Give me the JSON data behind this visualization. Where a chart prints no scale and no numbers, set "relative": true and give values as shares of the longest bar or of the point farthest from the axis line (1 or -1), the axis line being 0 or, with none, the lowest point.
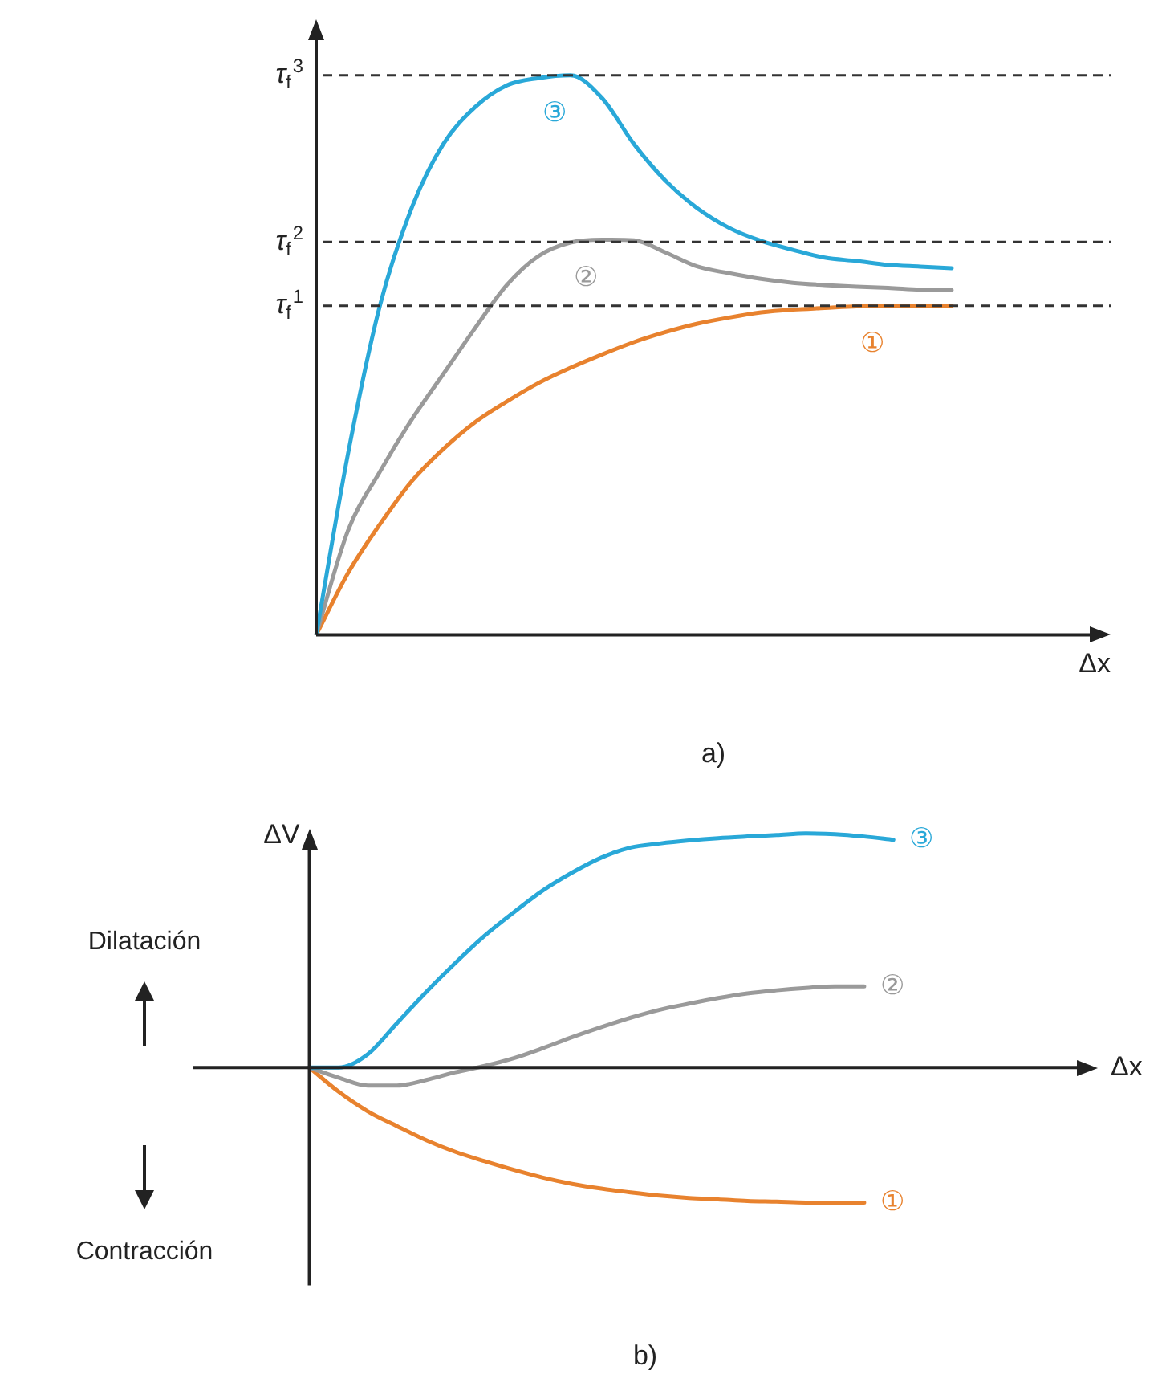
{
  "chart_data": [
    {
      "type": "line",
      "title": "a)",
      "xlabel": "Δx",
      "relative": true,
      "legend": false,
      "grid": false,
      "marker": "none",
      "line_style": "solid",
      "categories": [
        null,
        null,
        null,
        null,
        null,
        null,
        null,
        null,
        null,
        null,
        null,
        null,
        null,
        null,
        null,
        null,
        null,
        null,
        null,
        null,
        null,
        null,
        null,
        null,
        null,
        null
      ],
      "ref_lines": [
        {
          "axis": "y",
          "value": 1,
          "label": "τ$_{f}$$^{3}$",
          "line_style": "dashed",
          "color": "#333333"
        },
        {
          "axis": "y",
          "value": 0.702,
          "label": "τ$_{f}$$^{2}$",
          "line_style": "dashed",
          "color": "#333333"
        },
        {
          "axis": "y",
          "value": 0.588,
          "label": "τ$_{f}$$^{1}$",
          "line_style": "dashed",
          "color": "#333333"
        }
      ],
      "series": [
        {
          "name": "③",
          "color": "#29a8d8",
          "values": [
            0,
            0.323,
            0.587,
            0.762,
            0.877,
            0.943,
            0.982,
            0.995,
            1,
            0.959,
            0.877,
            0.811,
            0.762,
            0.727,
            0.704,
            0.688,
            0.674,
            0.668,
            0.661,
            0.658,
            0.655,
            null,
            null,
            null,
            null,
            null
          ]
        },
        {
          "name": "②",
          "color": "#9a9a9a",
          "values": [
            0,
            0.186,
            0.291,
            0.384,
            0.466,
            0.548,
            0.625,
            0.677,
            0.701,
            0.706,
            0.705,
            0.683,
            0.658,
            0.646,
            0.636,
            0.629,
            0.625,
            0.622,
            0.62,
            0.617,
            0.616,
            null,
            null,
            null,
            null,
            null
          ]
        },
        {
          "name": "①",
          "color": "#e8822e",
          "values": [
            0,
            0.11,
            0.197,
            0.274,
            0.332,
            0.38,
            0.417,
            0.45,
            0.477,
            0.501,
            0.523,
            0.541,
            0.556,
            0.567,
            0.576,
            0.581,
            0.584,
            0.587,
            0.588,
            0.588,
            0.588,
            null,
            null,
            null,
            null,
            null
          ]
        }
      ]
    },
    {
      "type": "line",
      "title": "b)",
      "xlabel": "Δx",
      "ylabel": "ΔV",
      "relative": true,
      "legend": false,
      "grid": false,
      "marker": "none",
      "line_style": "solid",
      "annotations": [
        "Dilatación",
        "Contracción"
      ],
      "categories": [
        null,
        null,
        null,
        null,
        null,
        null,
        null,
        null,
        null,
        null,
        null,
        null,
        null,
        null,
        null,
        null,
        null,
        null,
        null,
        null,
        null,
        null,
        null,
        null,
        null,
        null,
        null,
        null,
        null,
        null,
        null,
        null
      ],
      "series": [
        {
          "name": "③",
          "color": "#29a8d8",
          "values": [
            null,
            null,
            null,
            null,
            0,
            0,
            0.057,
            0.19,
            0.323,
            0.447,
            0.563,
            0.663,
            0.757,
            0.833,
            0.897,
            0.94,
            0.957,
            0.97,
            0.98,
            0.987,
            0.993,
            1,
            0.997,
            0.987,
            0.973,
            null,
            null,
            null,
            null,
            null,
            null,
            null
          ]
        },
        {
          "name": "②",
          "color": "#9a9a9a",
          "values": [
            null,
            null,
            null,
            null,
            0,
            -0.043,
            -0.077,
            -0.077,
            -0.053,
            -0.02,
            0.007,
            0.04,
            0.083,
            0.13,
            0.173,
            0.213,
            0.247,
            0.273,
            0.297,
            0.317,
            0.33,
            0.34,
            0.347,
            0.347,
            null,
            null,
            null,
            null,
            null,
            null,
            null,
            null
          ]
        },
        {
          "name": "①",
          "color": "#e8822e",
          "values": [
            null,
            null,
            null,
            null,
            0,
            -0.103,
            -0.187,
            -0.25,
            -0.31,
            -0.36,
            -0.4,
            -0.437,
            -0.47,
            -0.497,
            -0.517,
            -0.533,
            -0.547,
            -0.557,
            -0.563,
            -0.57,
            -0.573,
            -0.577,
            -0.577,
            -0.577,
            null,
            null,
            null,
            null,
            null,
            null,
            null,
            null
          ]
        }
      ]
    }
  ]
}
